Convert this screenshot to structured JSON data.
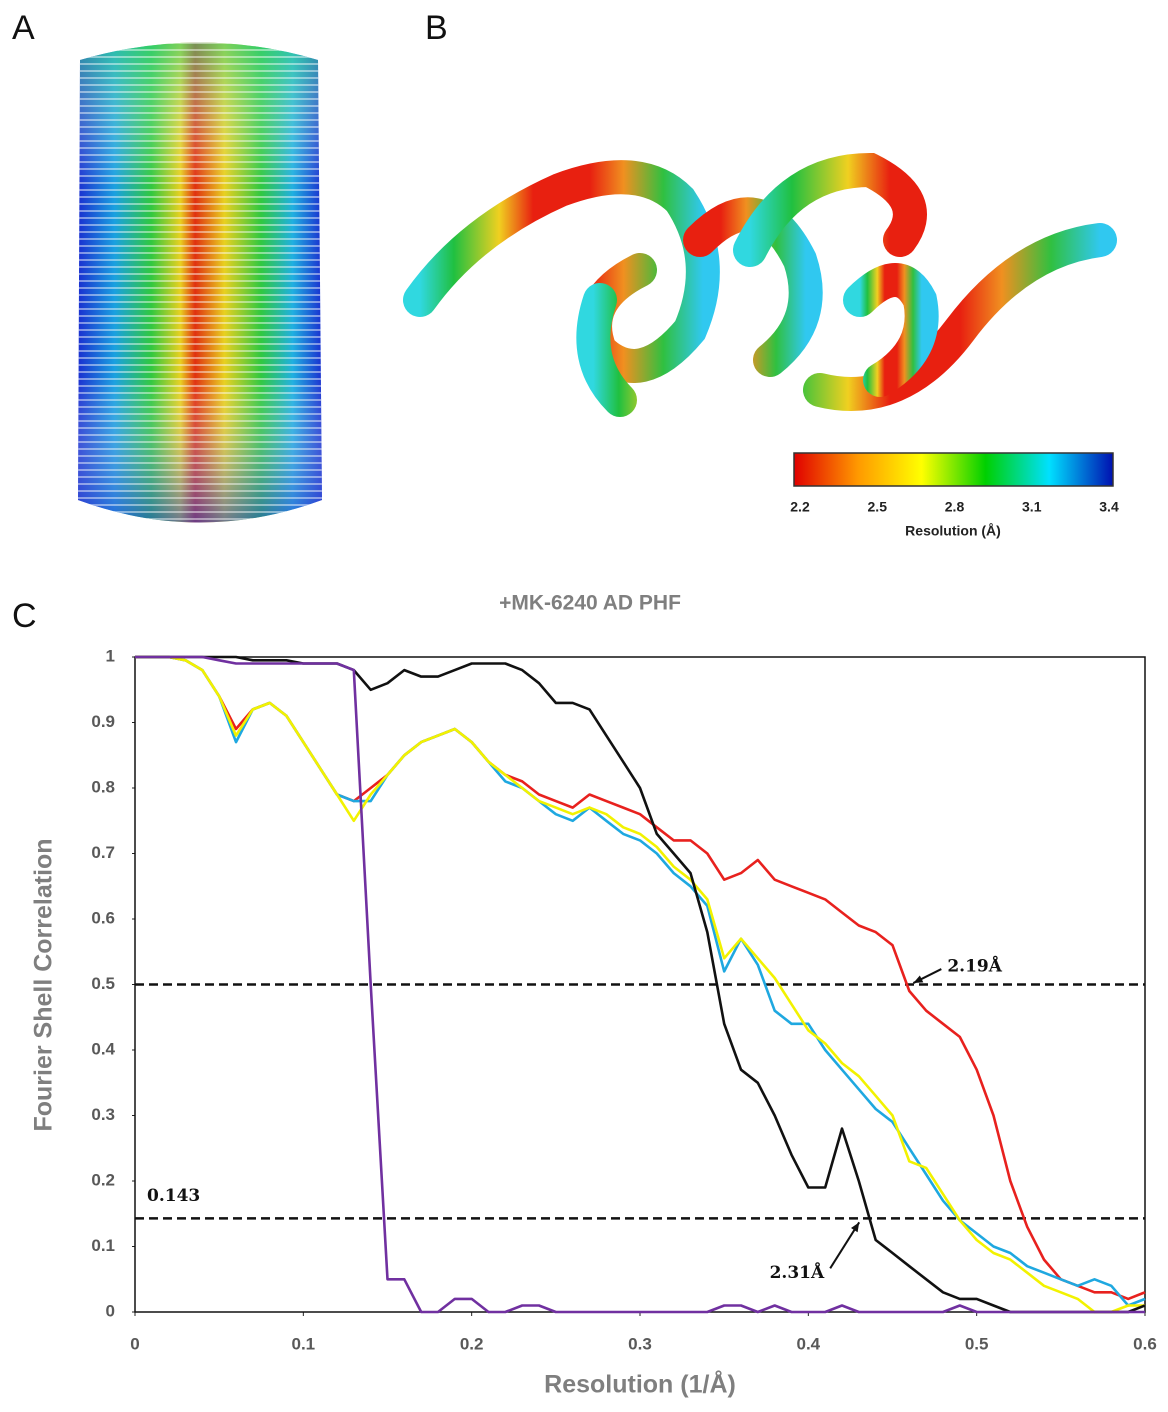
{
  "panels": [
    "A",
    "B",
    "C"
  ],
  "colorbar": {
    "label": "Resolution (Å)",
    "lim": [
      2.2,
      3.4
    ],
    "ticks": [
      2.2,
      2.5,
      2.8,
      3.1,
      3.4
    ],
    "colors": [
      "#e00000",
      "#ff9900",
      "#ffff00",
      "#00d000",
      "#00e0ff",
      "#0010b0"
    ]
  },
  "chart_data": {
    "type": "line",
    "title": "+MK-6240 AD PHF",
    "x_label": "Resolution (1/Å)",
    "y_label": "Fourier Shell Correlation",
    "xlim": [
      0,
      0.6
    ],
    "ylim": [
      0,
      1
    ],
    "xticks": [
      0,
      0.1,
      0.2,
      0.3,
      0.4,
      0.5,
      0.6
    ],
    "yticks": [
      0,
      0.1,
      0.2,
      0.3,
      0.4,
      0.5,
      0.6,
      0.7,
      0.8,
      0.9,
      1
    ],
    "hlines": [
      {
        "value": 0.5
      },
      {
        "value": 0.143,
        "label": "0.143"
      }
    ],
    "x": [
      0,
      0.01,
      0.02,
      0.03,
      0.04,
      0.05,
      0.06,
      0.07,
      0.08,
      0.09,
      0.1,
      0.11,
      0.12,
      0.13,
      0.14,
      0.15,
      0.16,
      0.17,
      0.18,
      0.19,
      0.2,
      0.21,
      0.22,
      0.23,
      0.24,
      0.25,
      0.26,
      0.27,
      0.28,
      0.29,
      0.3,
      0.31,
      0.32,
      0.33,
      0.34,
      0.35,
      0.36,
      0.37,
      0.38,
      0.39,
      0.4,
      0.41,
      0.42,
      0.43,
      0.44,
      0.45,
      0.46,
      0.47,
      0.48,
      0.49,
      0.5,
      0.51,
      0.52,
      0.53,
      0.54,
      0.55,
      0.56,
      0.57,
      0.58,
      0.59,
      0.6
    ],
    "series": [
      {
        "color": "#e8211e",
        "values": [
          1,
          1,
          1,
          0.995,
          0.98,
          0.94,
          0.89,
          0.92,
          0.93,
          0.91,
          0.87,
          0.83,
          0.79,
          0.78,
          0.8,
          0.82,
          0.85,
          0.87,
          0.88,
          0.89,
          0.87,
          0.84,
          0.82,
          0.81,
          0.79,
          0.78,
          0.77,
          0.79,
          0.78,
          0.77,
          0.76,
          0.74,
          0.72,
          0.72,
          0.7,
          0.66,
          0.67,
          0.69,
          0.66,
          0.65,
          0.64,
          0.63,
          0.61,
          0.59,
          0.58,
          0.56,
          0.49,
          0.46,
          0.44,
          0.42,
          0.37,
          0.3,
          0.2,
          0.13,
          0.08,
          0.05,
          0.04,
          0.03,
          0.03,
          0.02,
          0.03
        ]
      },
      {
        "color": "#1fa8e0",
        "values": [
          1,
          1,
          1,
          0.995,
          0.98,
          0.94,
          0.87,
          0.92,
          0.93,
          0.91,
          0.87,
          0.83,
          0.79,
          0.78,
          0.78,
          0.82,
          0.85,
          0.87,
          0.88,
          0.89,
          0.87,
          0.84,
          0.81,
          0.8,
          0.78,
          0.76,
          0.75,
          0.77,
          0.75,
          0.73,
          0.72,
          0.7,
          0.67,
          0.65,
          0.62,
          0.52,
          0.57,
          0.53,
          0.46,
          0.44,
          0.44,
          0.4,
          0.37,
          0.34,
          0.31,
          0.29,
          0.25,
          0.21,
          0.17,
          0.14,
          0.12,
          0.1,
          0.09,
          0.07,
          0.06,
          0.05,
          0.04,
          0.05,
          0.04,
          0.01,
          0.02
        ]
      },
      {
        "color": "#f2f200",
        "values": [
          1,
          1,
          1,
          0.995,
          0.98,
          0.94,
          0.88,
          0.92,
          0.93,
          0.91,
          0.87,
          0.83,
          0.79,
          0.75,
          0.79,
          0.82,
          0.85,
          0.87,
          0.88,
          0.89,
          0.87,
          0.84,
          0.82,
          0.8,
          0.78,
          0.77,
          0.76,
          0.77,
          0.76,
          0.74,
          0.73,
          0.71,
          0.68,
          0.66,
          0.63,
          0.54,
          0.57,
          0.54,
          0.51,
          0.47,
          0.43,
          0.41,
          0.38,
          0.36,
          0.33,
          0.3,
          0.23,
          0.22,
          0.18,
          0.14,
          0.11,
          0.09,
          0.08,
          0.06,
          0.04,
          0.03,
          0.02,
          0,
          0,
          0.01,
          0.01
        ]
      },
      {
        "color": "#111111",
        "values": [
          1,
          1,
          1,
          1,
          1,
          1,
          1,
          0.995,
          0.995,
          0.995,
          0.99,
          0.99,
          0.99,
          0.98,
          0.95,
          0.96,
          0.98,
          0.97,
          0.97,
          0.98,
          0.99,
          0.99,
          0.99,
          0.98,
          0.96,
          0.93,
          0.93,
          0.92,
          0.88,
          0.84,
          0.8,
          0.73,
          0.7,
          0.67,
          0.58,
          0.44,
          0.37,
          0.35,
          0.3,
          0.24,
          0.19,
          0.19,
          0.28,
          0.2,
          0.11,
          0.09,
          0.07,
          0.05,
          0.03,
          0.02,
          0.02,
          0.01,
          0,
          0,
          0,
          0,
          0,
          0,
          0,
          0,
          0.01
        ]
      },
      {
        "color": "#7030a0",
        "values": [
          1,
          1,
          1,
          1,
          1,
          0.995,
          0.99,
          0.99,
          0.99,
          0.99,
          0.99,
          0.99,
          0.99,
          0.98,
          0.5,
          0.05,
          0.05,
          0,
          0,
          0.02,
          0.02,
          0,
          0,
          0.01,
          0.01,
          0,
          0,
          0,
          0,
          0,
          0,
          0,
          0,
          0,
          0,
          0.01,
          0.01,
          0,
          0.01,
          0,
          0,
          0,
          0.01,
          0,
          0,
          0,
          0,
          0,
          0,
          0.01,
          0,
          0,
          0,
          0,
          0,
          0,
          0,
          0,
          0,
          0,
          0
        ]
      }
    ],
    "annotations": [
      {
        "text": "2.19Å",
        "x": 0.46,
        "y": 0.49
      },
      {
        "text": "2.31Å",
        "x": 0.432,
        "y": 0.143
      }
    ],
    "box": true
  }
}
